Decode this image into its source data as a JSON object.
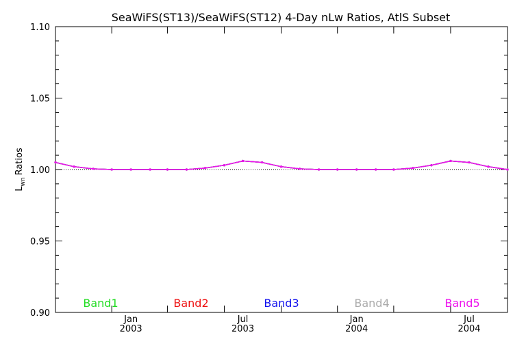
{
  "chart_data": {
    "type": "line",
    "title": "SeaWiFS(ST13)/SeaWiFS(ST12) 4-Day nLw Ratios, AtlS Subset",
    "ylabel": "Ratios",
    "ylabel_main": "L",
    "ylabel_sub": "wn",
    "xlabel": "",
    "ylim": [
      0.9,
      1.1
    ],
    "xlim": [
      "2002-09-01",
      "2004-09-01"
    ],
    "yticks": [
      "0.90",
      "0.95",
      "1.00",
      "1.05",
      "1.10"
    ],
    "xticks": [
      {
        "month": "Jan",
        "year": "2003",
        "date": "2003-01-01"
      },
      {
        "month": "Jul",
        "year": "2003",
        "date": "2003-07-01"
      },
      {
        "month": "Jan",
        "year": "2004",
        "date": "2004-01-01"
      },
      {
        "month": "Jul",
        "year": "2004",
        "date": "2004-07-01"
      }
    ],
    "reference_line": 1.0,
    "x": [
      "2002-09-01",
      "2002-10-01",
      "2002-11-01",
      "2002-12-01",
      "2003-01-01",
      "2003-02-01",
      "2003-03-01",
      "2003-04-01",
      "2003-05-01",
      "2003-06-01",
      "2003-07-01",
      "2003-08-01",
      "2003-09-01",
      "2003-10-01",
      "2003-11-01",
      "2003-12-01",
      "2004-01-01",
      "2004-02-01",
      "2004-03-01",
      "2004-04-01",
      "2004-05-01",
      "2004-06-01",
      "2004-07-01",
      "2004-08-01",
      "2004-09-01"
    ],
    "series": [
      {
        "name": "Band1",
        "color": "#22dd22",
        "values": [
          1.005,
          1.002,
          1.0005,
          1.0,
          1.0,
          1.0,
          1.0,
          1.0,
          1.001,
          1.003,
          1.006,
          1.005,
          1.002,
          1.0005,
          1.0,
          1.0,
          1.0,
          1.0,
          1.0,
          1.001,
          1.003,
          1.006,
          1.005,
          1.002,
          1.0
        ]
      },
      {
        "name": "Band2",
        "color": "#ee1111",
        "values": [
          1.005,
          1.002,
          1.0005,
          1.0,
          1.0,
          1.0,
          1.0,
          1.0,
          1.001,
          1.003,
          1.006,
          1.005,
          1.002,
          1.0005,
          1.0,
          1.0,
          1.0,
          1.0,
          1.0,
          1.001,
          1.003,
          1.006,
          1.005,
          1.002,
          1.0
        ]
      },
      {
        "name": "Band3",
        "color": "#1111ee",
        "values": [
          1.005,
          1.002,
          1.0005,
          1.0,
          1.0,
          1.0,
          1.0,
          1.0,
          1.001,
          1.003,
          1.006,
          1.005,
          1.002,
          1.0005,
          1.0,
          1.0,
          1.0,
          1.0,
          1.0,
          1.001,
          1.003,
          1.006,
          1.005,
          1.002,
          1.0
        ]
      },
      {
        "name": "Band4",
        "color": "#aaaaaa",
        "values": [
          1.005,
          1.002,
          1.0005,
          1.0,
          1.0,
          1.0,
          1.0,
          1.0,
          1.001,
          1.003,
          1.006,
          1.005,
          1.002,
          1.0005,
          1.0,
          1.0,
          1.0,
          1.0,
          1.0,
          1.001,
          1.003,
          1.006,
          1.005,
          1.002,
          1.0
        ]
      },
      {
        "name": "Band5",
        "color": "#ee11ee",
        "values": [
          1.005,
          1.002,
          1.0005,
          1.0,
          1.0,
          1.0,
          1.0,
          1.0,
          1.001,
          1.003,
          1.006,
          1.005,
          1.002,
          1.0005,
          1.0,
          1.0,
          1.0,
          1.0,
          1.0,
          1.001,
          1.003,
          1.006,
          1.005,
          1.002,
          1.0
        ]
      }
    ],
    "legend_placement": "bottom inside plot",
    "grid": false
  }
}
